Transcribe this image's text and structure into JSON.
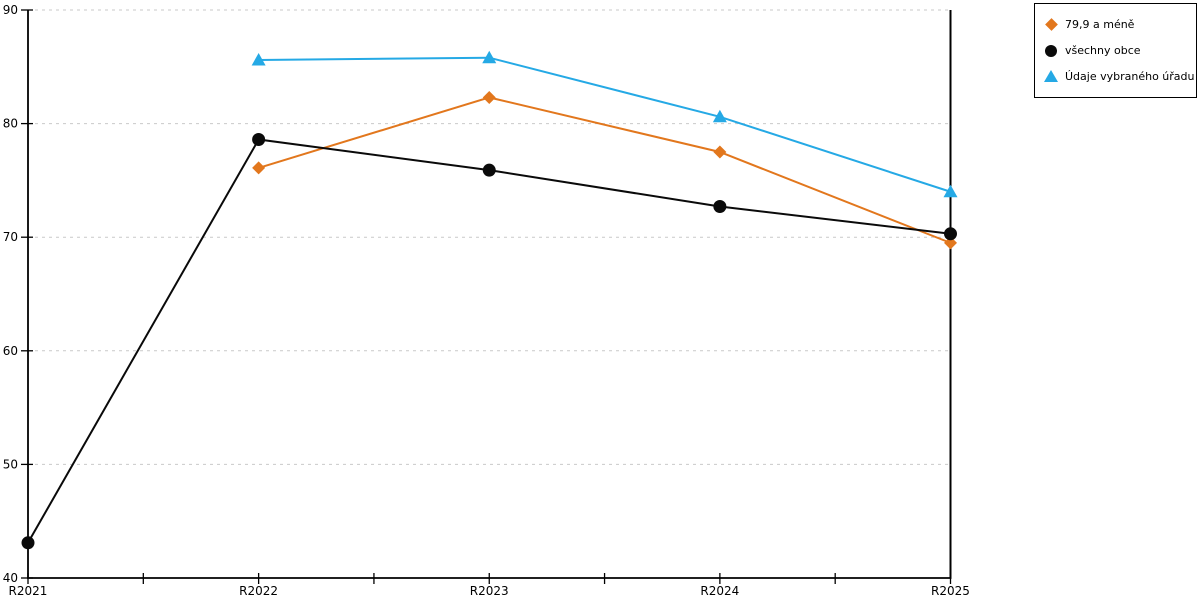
{
  "chart_data": {
    "type": "line",
    "categories": [
      "R2021",
      "R2022",
      "R2023",
      "R2024",
      "R2025"
    ],
    "series": [
      {
        "name": "79,9 a méně",
        "color": "#E2771D",
        "marker": "diamond",
        "values": [
          null,
          76.1,
          82.3,
          77.5,
          69.5
        ]
      },
      {
        "name": "všechny obce",
        "color": "#0a0a0a",
        "marker": "circle",
        "values": [
          43.1,
          78.6,
          75.9,
          72.7,
          70.3
        ]
      },
      {
        "name": "Údaje vybraného úřadu",
        "color": "#25A9E5",
        "marker": "triangle",
        "values": [
          null,
          85.6,
          85.8,
          80.6,
          74.0
        ]
      }
    ],
    "title": "",
    "xlabel": "",
    "ylabel": "",
    "ylim": [
      40,
      90
    ],
    "ytick_step": 10,
    "yticks": [
      "40",
      "50",
      "60",
      "70",
      "80",
      "90"
    ],
    "grid": "horizontal-dashed",
    "grid_color": "#c9c9c9",
    "axis_color": "#000000",
    "legend_position": "top-right",
    "legend_border_color": "#000000"
  }
}
